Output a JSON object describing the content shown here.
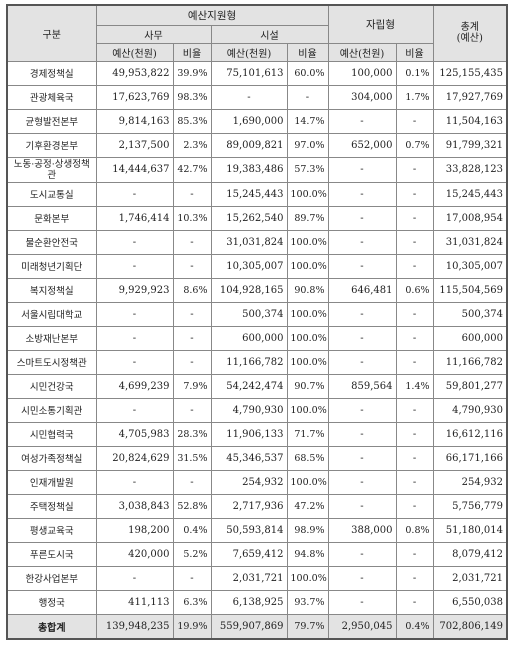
{
  "headers": {
    "category": "구분",
    "support": "예산지원형",
    "office": "사무",
    "facility": "시설",
    "self": "자립형",
    "total_line1": "총계",
    "total_line2": "(예산)",
    "budget": "예산(천원)",
    "ratio": "비율"
  },
  "rows": [
    {
      "name": "경제정책실",
      "office_budget": "49,953,822",
      "office_ratio": "39.9%",
      "facility_budget": "75,101,613",
      "facility_ratio": "60.0%",
      "self_budget": "100,000",
      "self_ratio": "0.1%",
      "total": "125,155,435"
    },
    {
      "name": "관광체육국",
      "office_budget": "17,623,769",
      "office_ratio": "98.3%",
      "facility_budget": "-",
      "facility_ratio": "-",
      "self_budget": "304,000",
      "self_ratio": "1.7%",
      "total": "17,927,769"
    },
    {
      "name": "균형발전본부",
      "office_budget": "9,814,163",
      "office_ratio": "85.3%",
      "facility_budget": "1,690,000",
      "facility_ratio": "14.7%",
      "self_budget": "-",
      "self_ratio": "-",
      "total": "11,504,163"
    },
    {
      "name": "기후환경본부",
      "office_budget": "2,137,500",
      "office_ratio": "2.3%",
      "facility_budget": "89,009,821",
      "facility_ratio": "97.0%",
      "self_budget": "652,000",
      "self_ratio": "0.7%",
      "total": "91,799,321"
    },
    {
      "name": "노동·공정·상생정책관",
      "office_budget": "14,444,637",
      "office_ratio": "42.7%",
      "facility_budget": "19,383,486",
      "facility_ratio": "57.3%",
      "self_budget": "-",
      "self_ratio": "-",
      "total": "33,828,123"
    },
    {
      "name": "도시교통실",
      "office_budget": "-",
      "office_ratio": "-",
      "facility_budget": "15,245,443",
      "facility_ratio": "100.0%",
      "self_budget": "-",
      "self_ratio": "-",
      "total": "15,245,443"
    },
    {
      "name": "문화본부",
      "office_budget": "1,746,414",
      "office_ratio": "10.3%",
      "facility_budget": "15,262,540",
      "facility_ratio": "89.7%",
      "self_budget": "-",
      "self_ratio": "-",
      "total": "17,008,954"
    },
    {
      "name": "물순환안전국",
      "office_budget": "-",
      "office_ratio": "-",
      "facility_budget": "31,031,824",
      "facility_ratio": "100.0%",
      "self_budget": "-",
      "self_ratio": "-",
      "total": "31,031,824"
    },
    {
      "name": "미래청년기획단",
      "office_budget": "-",
      "office_ratio": "-",
      "facility_budget": "10,305,007",
      "facility_ratio": "100.0%",
      "self_budget": "-",
      "self_ratio": "-",
      "total": "10,305,007"
    },
    {
      "name": "복지정책실",
      "office_budget": "9,929,923",
      "office_ratio": "8.6%",
      "facility_budget": "104,928,165",
      "facility_ratio": "90.8%",
      "self_budget": "646,481",
      "self_ratio": "0.6%",
      "total": "115,504,569"
    },
    {
      "name": "서울시립대학교",
      "office_budget": "-",
      "office_ratio": "-",
      "facility_budget": "500,374",
      "facility_ratio": "100.0%",
      "self_budget": "-",
      "self_ratio": "-",
      "total": "500,374"
    },
    {
      "name": "소방재난본부",
      "office_budget": "-",
      "office_ratio": "-",
      "facility_budget": "600,000",
      "facility_ratio": "100.0%",
      "self_budget": "-",
      "self_ratio": "-",
      "total": "600,000"
    },
    {
      "name": "스마트도시정책관",
      "office_budget": "-",
      "office_ratio": "-",
      "facility_budget": "11,166,782",
      "facility_ratio": "100.0%",
      "self_budget": "-",
      "self_ratio": "-",
      "total": "11,166,782"
    },
    {
      "name": "시민건강국",
      "office_budget": "4,699,239",
      "office_ratio": "7.9%",
      "facility_budget": "54,242,474",
      "facility_ratio": "90.7%",
      "self_budget": "859,564",
      "self_ratio": "1.4%",
      "total": "59,801,277"
    },
    {
      "name": "시민소통기획관",
      "office_budget": "-",
      "office_ratio": "-",
      "facility_budget": "4,790,930",
      "facility_ratio": "100.0%",
      "self_budget": "-",
      "self_ratio": "-",
      "total": "4,790,930"
    },
    {
      "name": "시민협력국",
      "office_budget": "4,705,983",
      "office_ratio": "28.3%",
      "facility_budget": "11,906,133",
      "facility_ratio": "71.7%",
      "self_budget": "-",
      "self_ratio": "-",
      "total": "16,612,116"
    },
    {
      "name": "여성가족정책실",
      "office_budget": "20,824,629",
      "office_ratio": "31.5%",
      "facility_budget": "45,346,537",
      "facility_ratio": "68.5%",
      "self_budget": "-",
      "self_ratio": "-",
      "total": "66,171,166"
    },
    {
      "name": "인재개발원",
      "office_budget": "-",
      "office_ratio": "-",
      "facility_budget": "254,932",
      "facility_ratio": "100.0%",
      "self_budget": "-",
      "self_ratio": "-",
      "total": "254,932"
    },
    {
      "name": "주택정책실",
      "office_budget": "3,038,843",
      "office_ratio": "52.8%",
      "facility_budget": "2,717,936",
      "facility_ratio": "47.2%",
      "self_budget": "-",
      "self_ratio": "-",
      "total": "5,756,779"
    },
    {
      "name": "평생교육국",
      "office_budget": "198,200",
      "office_ratio": "0.4%",
      "facility_budget": "50,593,814",
      "facility_ratio": "98.9%",
      "self_budget": "388,000",
      "self_ratio": "0.8%",
      "total": "51,180,014"
    },
    {
      "name": "푸른도시국",
      "office_budget": "420,000",
      "office_ratio": "5.2%",
      "facility_budget": "7,659,412",
      "facility_ratio": "94.8%",
      "self_budget": "-",
      "self_ratio": "-",
      "total": "8,079,412"
    },
    {
      "name": "한강사업본부",
      "office_budget": "-",
      "office_ratio": "-",
      "facility_budget": "2,031,721",
      "facility_ratio": "100.0%",
      "self_budget": "-",
      "self_ratio": "-",
      "total": "2,031,721"
    },
    {
      "name": "행정국",
      "office_budget": "411,113",
      "office_ratio": "6.3%",
      "facility_budget": "6,138,925",
      "facility_ratio": "93.7%",
      "self_budget": "-",
      "self_ratio": "-",
      "total": "6,550,038"
    }
  ],
  "grand_total": {
    "name": "총합계",
    "office_budget": "139,948,235",
    "office_ratio": "19.9%",
    "facility_budget": "559,907,869",
    "facility_ratio": "79.7%",
    "self_budget": "2,950,045",
    "self_ratio": "0.4%",
    "total": "702,806,149"
  }
}
